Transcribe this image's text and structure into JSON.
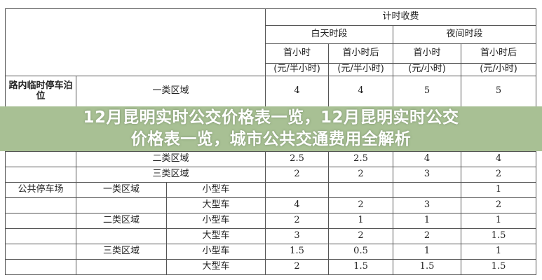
{
  "table": {
    "header": {
      "group": "计时收费",
      "day": "白天时段",
      "night": "夜间时段",
      "cols": [
        "首小时",
        "首小时后",
        "首小时",
        "首小时后"
      ],
      "units": [
        "(元/半小时)",
        "(元/半小时)",
        "(元/小时)",
        "(元/小时)"
      ]
    },
    "rows": [
      {
        "category": "路内临时停车泊位",
        "zone": "一类区域",
        "vehicle": "",
        "values": [
          "4",
          "4",
          "5",
          "5"
        ]
      },
      {
        "category": "",
        "zone": "二类区域",
        "vehicle": "",
        "values": [
          "2.5",
          "2.5",
          "4",
          "4"
        ]
      },
      {
        "category": "",
        "zone": "三类区域",
        "vehicle": "",
        "values": [
          "2",
          "2",
          "3",
          "2"
        ]
      },
      {
        "category": "公共停车场",
        "zone": "一类区域",
        "vehicle": "小型车",
        "values": [
          "",
          "",
          "",
          "1"
        ]
      },
      {
        "category": "",
        "zone": "",
        "vehicle": "大型车",
        "values": [
          "4",
          "2",
          "3",
          "2"
        ]
      },
      {
        "category": "",
        "zone": "二类区域",
        "vehicle": "小型车",
        "values": [
          "2",
          "1",
          "1",
          "1"
        ]
      },
      {
        "category": "",
        "zone": "",
        "vehicle": "大型车",
        "values": [
          "3",
          "2",
          "2",
          "1.5"
        ]
      },
      {
        "category": "",
        "zone": "三类区域",
        "vehicle": "小型车",
        "values": [
          "1.5",
          "0.5",
          "1",
          "1"
        ]
      },
      {
        "category": "",
        "zone": "",
        "vehicle": "大型车",
        "values": [
          "2",
          "1.5",
          "1.5",
          "1.5"
        ]
      }
    ]
  },
  "banner": {
    "line1": "12月昆明实时公交价格表一览，12月昆明实时公交",
    "line2": "价格表一览，城市公共交通费用全解析",
    "color": "#a8c094"
  }
}
